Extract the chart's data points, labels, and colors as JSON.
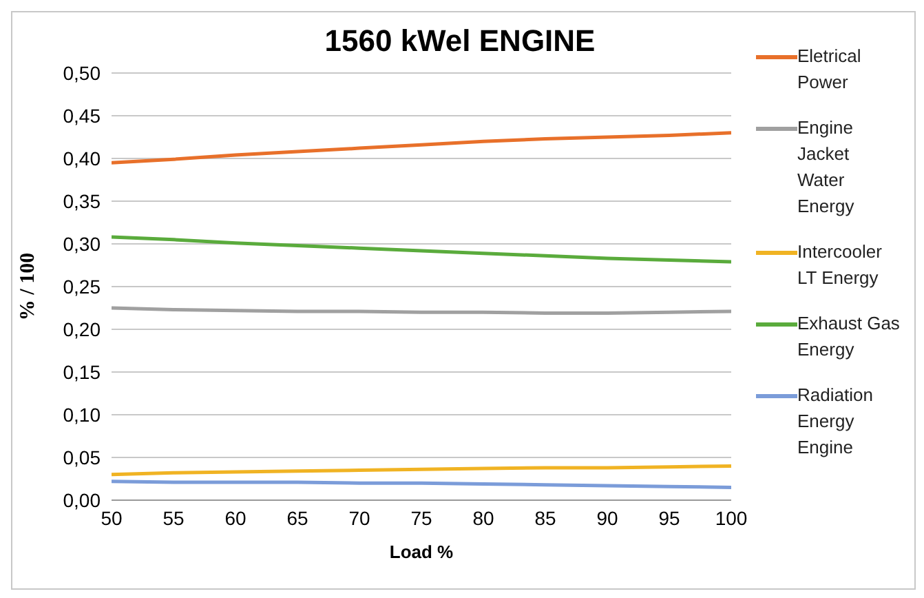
{
  "chart_data": {
    "type": "line",
    "title": "1560 kWel ENGINE",
    "xlabel": "Load %",
    "ylabel": "% / 100",
    "x": [
      50,
      55,
      60,
      65,
      70,
      75,
      80,
      85,
      90,
      95,
      100
    ],
    "series": [
      {
        "name": "Eletrical Power",
        "color": "#e8702a",
        "values": [
          0.395,
          0.399,
          0.404,
          0.408,
          0.412,
          0.416,
          0.42,
          0.423,
          0.425,
          0.427,
          0.43
        ]
      },
      {
        "name": "Engine Jacket Water Energy",
        "color": "#a0a0a0",
        "values": [
          0.225,
          0.223,
          0.222,
          0.221,
          0.221,
          0.22,
          0.22,
          0.219,
          0.219,
          0.22,
          0.221
        ]
      },
      {
        "name": "Intercooler LT Energy",
        "color": "#f0b323",
        "values": [
          0.03,
          0.032,
          0.033,
          0.034,
          0.035,
          0.036,
          0.037,
          0.038,
          0.038,
          0.039,
          0.04
        ]
      },
      {
        "name": "Exhaust Gas Energy",
        "color": "#5aab3c",
        "values": [
          0.308,
          0.305,
          0.301,
          0.298,
          0.295,
          0.292,
          0.289,
          0.286,
          0.283,
          0.281,
          0.279
        ]
      },
      {
        "name": "Radiation Energy Engine",
        "color": "#7b9cd9",
        "values": [
          0.022,
          0.021,
          0.021,
          0.021,
          0.02,
          0.02,
          0.019,
          0.018,
          0.017,
          0.016,
          0.015
        ]
      }
    ],
    "xlim": [
      50,
      100
    ],
    "xticks": [
      50,
      55,
      60,
      65,
      70,
      75,
      80,
      85,
      90,
      95,
      100
    ],
    "ylim": [
      0,
      0.5
    ],
    "yticks": [
      {
        "value": 0,
        "label": "0,00"
      },
      {
        "value": 0.05,
        "label": "0,05"
      },
      {
        "value": 0.1,
        "label": "0,10"
      },
      {
        "value": 0.15,
        "label": "0,15"
      },
      {
        "value": 0.2,
        "label": "0,20"
      },
      {
        "value": 0.25,
        "label": "0,25"
      },
      {
        "value": 0.3,
        "label": "0,30"
      },
      {
        "value": 0.35,
        "label": "0,35"
      },
      {
        "value": 0.4,
        "label": "0,40"
      },
      {
        "value": 0.45,
        "label": "0,45"
      },
      {
        "value": 0.5,
        "label": "0,50"
      }
    ],
    "grid": "y",
    "legend": "right",
    "marker": "none",
    "line_style": "solid"
  }
}
